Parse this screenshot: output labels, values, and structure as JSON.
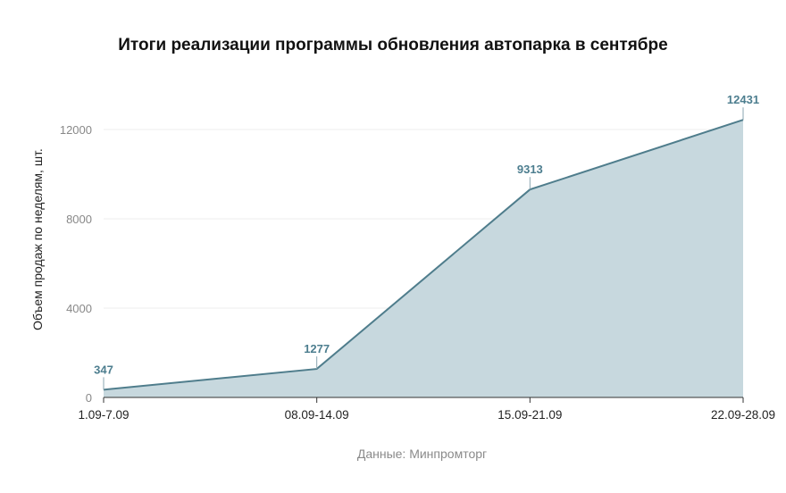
{
  "chart_data": {
    "type": "area",
    "title": "Итоги реализации программы обновления автопарка в сентябре",
    "ylabel": "Объем продаж по неделям, шт.",
    "xlabel": "",
    "categories": [
      "1.09-7.09",
      "08.09-14.09",
      "15.09-21.09",
      "22.09-28.09"
    ],
    "values": [
      347,
      1277,
      9313,
      12431
    ],
    "data_labels": [
      "347",
      "1277",
      "9313",
      "12431"
    ],
    "yticks": [
      0,
      4000,
      8000,
      12000
    ],
    "ytick_labels": [
      "0",
      "4000",
      "8000",
      "12000"
    ],
    "ylim": [
      0,
      12000
    ],
    "grid": true,
    "legend": "none",
    "colors": {
      "line": "#4f7d8c",
      "fill": "#c7d8de",
      "label": "#4d7e8f",
      "grid": "#ececec"
    }
  },
  "source": "Данные: Минпромторг"
}
